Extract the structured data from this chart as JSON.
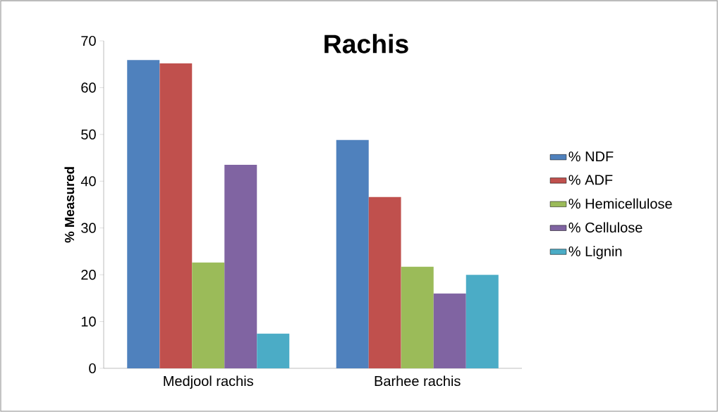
{
  "chart_data": {
    "type": "bar",
    "title": "Rachis",
    "ylabel": "% Measured",
    "categories": [
      "Medjool rachis",
      "Barhee rachis"
    ],
    "series": [
      {
        "name": "% NDF",
        "color": "#4f81bd",
        "values": [
          65.9,
          48.8
        ]
      },
      {
        "name": "% ADF",
        "color": "#c0504d",
        "values": [
          65.2,
          36.6
        ]
      },
      {
        "name": "% Hemicellulose",
        "color": "#9bbb59",
        "values": [
          22.6,
          21.7
        ]
      },
      {
        "name": "% Cellulose",
        "color": "#8064a2",
        "values": [
          43.5,
          16.0
        ]
      },
      {
        "name": "% Lignin",
        "color": "#4bacc6",
        "values": [
          7.4,
          20.0
        ]
      }
    ],
    "ylim": [
      0,
      70
    ],
    "yticks": [
      0,
      10,
      20,
      30,
      40,
      50,
      60,
      70
    ],
    "legend": "right"
  }
}
